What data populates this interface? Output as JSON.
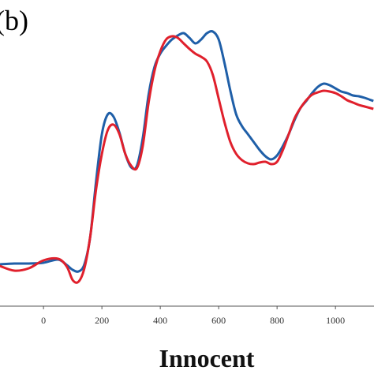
{
  "chart_data": {
    "type": "line",
    "panel_label": "(b)",
    "xlabel": "Innocent",
    "x": [
      -150,
      -100,
      -50,
      0,
      50,
      80,
      100,
      120,
      140,
      160,
      180,
      200,
      220,
      240,
      260,
      280,
      300,
      320,
      340,
      360,
      380,
      400,
      420,
      440,
      460,
      480,
      500,
      520,
      540,
      560,
      580,
      600,
      620,
      640,
      660,
      680,
      700,
      720,
      740,
      760,
      780,
      800,
      820,
      840,
      860,
      880,
      900,
      920,
      940,
      960,
      980,
      1000,
      1020,
      1040,
      1060,
      1080,
      1100,
      1130
    ],
    "series": [
      {
        "color": "#1f5fa8",
        "values": [
          53,
          54,
          54,
          55,
          59,
          52,
          46,
          44,
          53,
          88,
          158,
          218,
          243,
          240,
          220,
          193,
          176,
          178,
          213,
          268,
          303,
          320,
          330,
          338,
          343,
          346,
          340,
          333,
          338,
          346,
          348,
          338,
          308,
          273,
          243,
          228,
          218,
          208,
          198,
          190,
          186,
          191,
          203,
          218,
          236,
          251,
          260,
          270,
          278,
          282,
          280,
          276,
          272,
          270,
          267,
          266,
          264,
          260
        ]
      },
      {
        "color": "#e0202c",
        "values": [
          51,
          45,
          48,
          58,
          60,
          50,
          33,
          31,
          48,
          88,
          148,
          193,
          223,
          230,
          218,
          193,
          178,
          175,
          203,
          258,
          298,
          323,
          338,
          342,
          340,
          333,
          326,
          320,
          316,
          310,
          293,
          263,
          233,
          208,
          193,
          185,
          181,
          180,
          182,
          183,
          180,
          183,
          198,
          218,
          238,
          251,
          261,
          268,
          271,
          273,
          272,
          270,
          266,
          261,
          258,
          255,
          253,
          250
        ]
      }
    ],
    "xlim": [
      -149,
      1132
    ],
    "ylim": [
      0,
      388
    ],
    "xticks": [
      0,
      200,
      400,
      600,
      800,
      1000
    ]
  }
}
